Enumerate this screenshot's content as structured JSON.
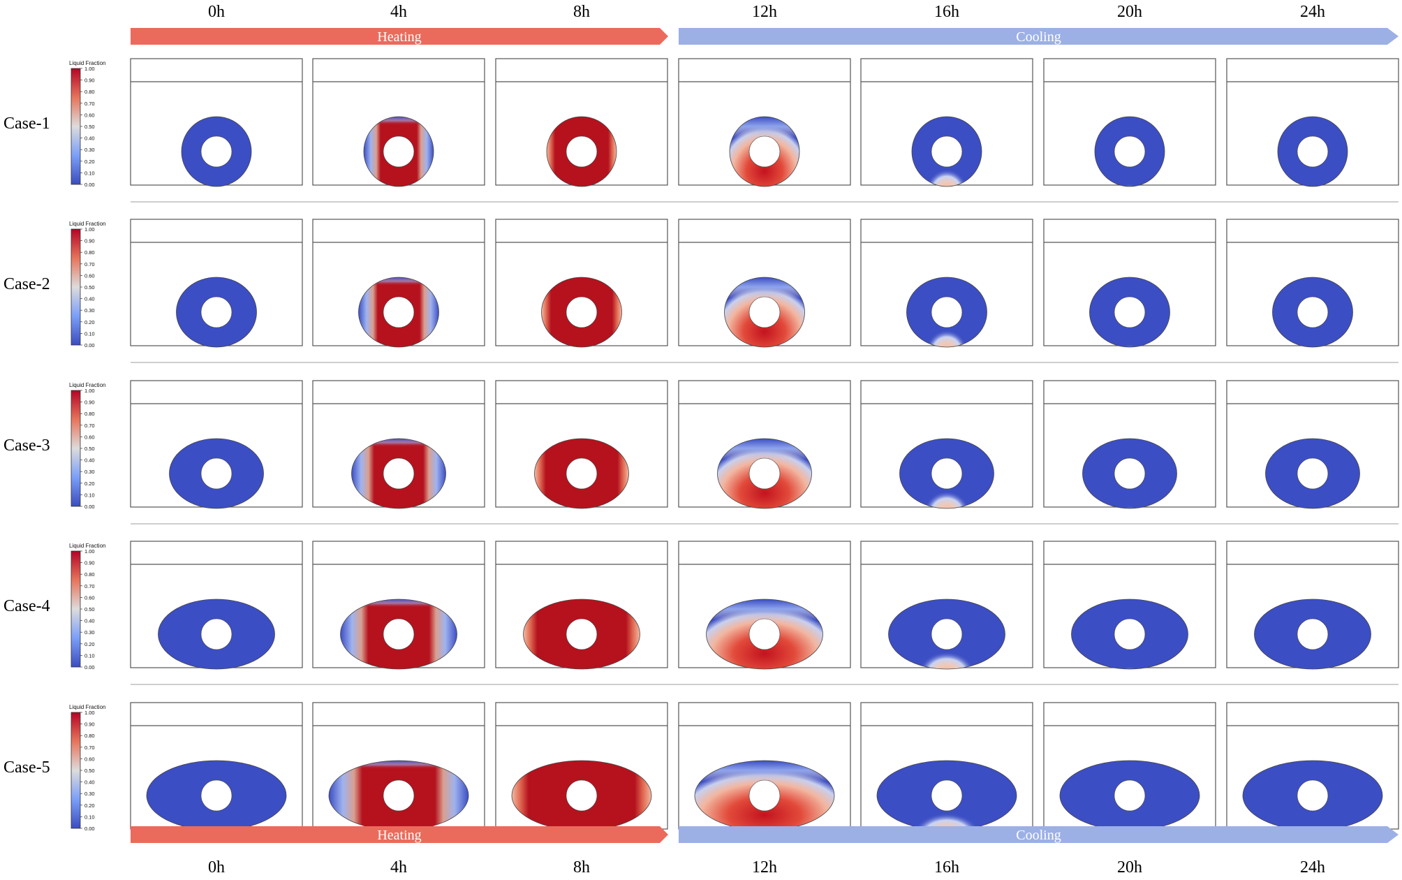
{
  "times": [
    "0h",
    "4h",
    "8h",
    "12h",
    "16h",
    "20h",
    "24h"
  ],
  "phases": [
    {
      "label": "Heating",
      "color": "#ea6b5c"
    },
    {
      "label": "Cooling",
      "color": "#9cb0e6"
    }
  ],
  "cases": [
    {
      "label": "Case-1",
      "aspect": 1.0
    },
    {
      "label": "Case-2",
      "aspect": 1.15
    },
    {
      "label": "Case-3",
      "aspect": 1.35
    },
    {
      "label": "Case-4",
      "aspect": 1.67
    },
    {
      "label": "Case-5",
      "aspect": 2.0
    }
  ],
  "colorbar": {
    "title": "Liquid Fraction",
    "ticks": [
      "1.00",
      "0.90",
      "0.80",
      "0.70",
      "0.60",
      "0.50",
      "0.40",
      "0.30",
      "0.20",
      "0.10",
      "0.00"
    ]
  },
  "colors": {
    "solid": "#3c4ec4",
    "liquid": "#b5121e",
    "mid": "#eed8cc"
  }
}
